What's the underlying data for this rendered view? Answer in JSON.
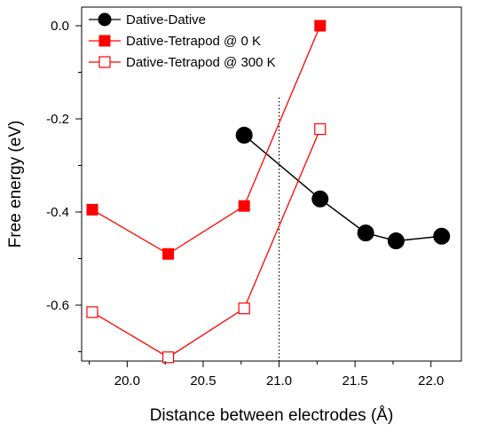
{
  "chart_data": {
    "type": "line",
    "xlabel": "Distance between electrodes (Å)",
    "ylabel": "Free energy (eV)",
    "xlim": [
      19.7,
      22.2
    ],
    "ylim": [
      -0.72,
      0.04
    ],
    "xticks": [
      20.0,
      20.5,
      21.0,
      21.5,
      22.0
    ],
    "xtick_labels": [
      "20.0",
      "20.5",
      "21.0",
      "21.5",
      "22.0"
    ],
    "yticks": [
      0.0,
      -0.2,
      -0.4,
      -0.6
    ],
    "ytick_labels": [
      "0.0",
      "-0.2",
      "-0.4",
      "-0.6"
    ],
    "reference_line": {
      "x": 21.0,
      "style": "dotted"
    },
    "legend_position": "top-left",
    "grid": false,
    "series": [
      {
        "name": "Dative-Dative",
        "color": "#000000",
        "marker": "filled-circle",
        "x": [
          20.77,
          21.27,
          21.57,
          21.77,
          22.07
        ],
        "y": [
          -0.235,
          -0.372,
          -0.445,
          -0.462,
          -0.452
        ]
      },
      {
        "name": "Dative-Tetrapod @ 0 K",
        "color": "#ff0000",
        "marker": "filled-square",
        "x": [
          19.77,
          20.27,
          20.77,
          21.27
        ],
        "y": [
          -0.395,
          -0.49,
          -0.387,
          0.0
        ]
      },
      {
        "name": "Dative-Tetrapod @ 300 K",
        "color": "#ff0000",
        "marker": "open-square",
        "x": [
          19.77,
          20.27,
          20.77,
          21.27
        ],
        "y": [
          -0.615,
          -0.712,
          -0.607,
          -0.222
        ]
      }
    ]
  }
}
